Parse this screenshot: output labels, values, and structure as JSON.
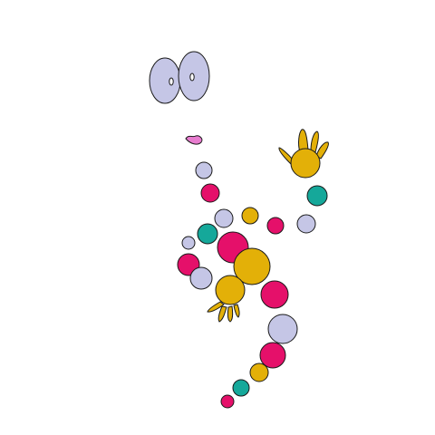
{
  "colors": {
    "background": "#ffffff",
    "lavender": "#c5c6e6",
    "magenta": "#e5106a",
    "gold": "#e3b008",
    "teal": "#15a89a",
    "pink": "#e87ccf",
    "outline": "#1a1a1a"
  },
  "figure": {
    "description_icon": "bubble-creature-icon",
    "parts": {
      "eyes": "eyes",
      "mouth": "mouth",
      "right_hand": "raised-hand",
      "left_hand": "lower-hand",
      "body_dots": "body-dots"
    }
  }
}
